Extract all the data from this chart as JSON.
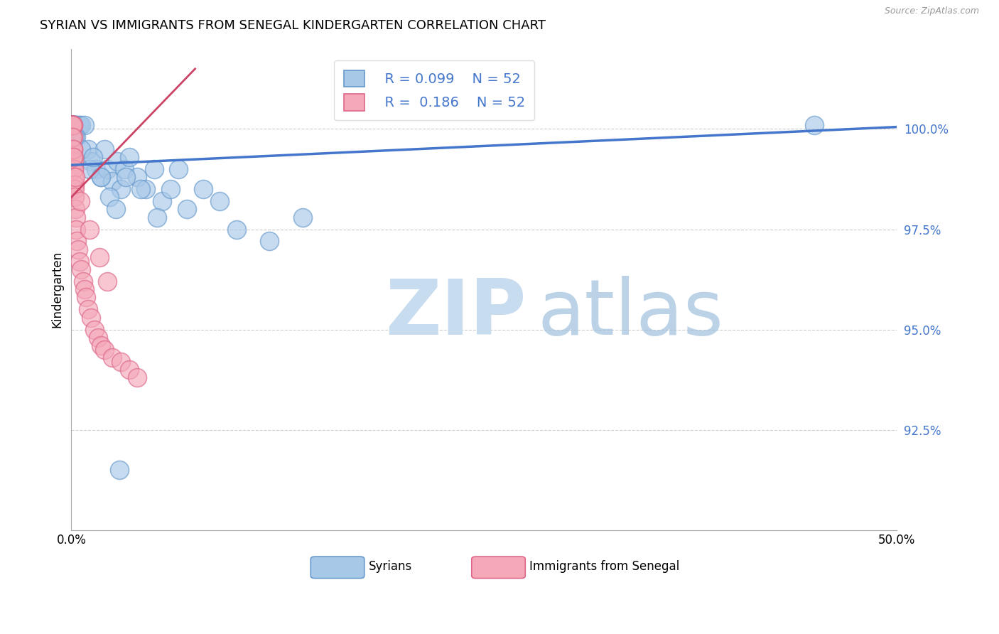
{
  "title": "SYRIAN VS IMMIGRANTS FROM SENEGAL KINDERGARTEN CORRELATION CHART",
  "source": "Source: ZipAtlas.com",
  "xlabel_syrians": "Syrians",
  "xlabel_senegal": "Immigrants from Senegal",
  "ylabel": "Kindergarten",
  "xlim": [
    0.0,
    50.0
  ],
  "ylim": [
    90.0,
    102.0
  ],
  "ytick_labels": [
    "92.5%",
    "95.0%",
    "97.5%",
    "100.0%"
  ],
  "ytick_values": [
    92.5,
    95.0,
    97.5,
    100.0
  ],
  "legend_blue_r": "R = 0.099",
  "legend_blue_n": "N = 52",
  "legend_pink_r": "R =  0.186",
  "legend_pink_n": "N = 52",
  "blue_color": "#A8C8E8",
  "pink_color": "#F4A8B8",
  "blue_edge_color": "#6699CC",
  "pink_edge_color": "#DD6688",
  "blue_line_color": "#4477CC",
  "pink_line_color": "#CC4466",
  "background_color": "#FFFFFF",
  "grid_color": "#CCCCCC",
  "blue_scatter_x": [
    0.05,
    0.05,
    0.05,
    0.1,
    0.1,
    0.1,
    0.15,
    0.15,
    0.2,
    0.2,
    0.3,
    0.3,
    0.4,
    0.5,
    0.6,
    0.8,
    1.0,
    1.2,
    1.5,
    1.8,
    2.0,
    2.2,
    2.5,
    2.8,
    3.0,
    3.2,
    3.5,
    4.0,
    4.5,
    5.0,
    5.5,
    6.0,
    6.5,
    7.0,
    8.0,
    9.0,
    10.0,
    12.0,
    14.0,
    0.3,
    0.6,
    1.1,
    1.8,
    2.3,
    2.7,
    3.3,
    4.2,
    5.2,
    45.0,
    0.2,
    1.3,
    2.9
  ],
  "blue_scatter_y": [
    100.1,
    100.1,
    100.1,
    100.1,
    100.1,
    100.1,
    100.1,
    100.1,
    100.1,
    100.1,
    100.1,
    100.1,
    100.1,
    100.1,
    100.1,
    100.1,
    99.5,
    99.2,
    99.0,
    98.8,
    99.5,
    99.0,
    98.7,
    99.2,
    98.5,
    99.0,
    99.3,
    98.8,
    98.5,
    99.0,
    98.2,
    98.5,
    99.0,
    98.0,
    98.5,
    98.2,
    97.5,
    97.2,
    97.8,
    99.8,
    99.5,
    99.0,
    98.8,
    98.3,
    98.0,
    98.8,
    98.5,
    97.8,
    100.1,
    99.8,
    99.3,
    91.5
  ],
  "pink_scatter_x": [
    0.02,
    0.03,
    0.04,
    0.05,
    0.05,
    0.06,
    0.07,
    0.08,
    0.08,
    0.09,
    0.1,
    0.1,
    0.12,
    0.12,
    0.13,
    0.14,
    0.15,
    0.15,
    0.16,
    0.17,
    0.18,
    0.2,
    0.22,
    0.25,
    0.28,
    0.3,
    0.35,
    0.4,
    0.5,
    0.6,
    0.7,
    0.8,
    0.9,
    1.0,
    1.2,
    1.4,
    1.6,
    1.8,
    2.0,
    2.5,
    3.0,
    3.5,
    4.0,
    0.06,
    0.09,
    0.11,
    0.13,
    0.25,
    0.55,
    1.1,
    1.7,
    2.2
  ],
  "pink_scatter_y": [
    100.1,
    100.1,
    100.1,
    100.1,
    100.1,
    100.1,
    100.1,
    100.1,
    100.1,
    100.1,
    100.1,
    100.1,
    99.8,
    99.5,
    99.5,
    99.3,
    99.2,
    99.0,
    99.0,
    98.8,
    98.6,
    98.5,
    98.3,
    98.0,
    97.8,
    97.5,
    97.2,
    97.0,
    96.7,
    96.5,
    96.2,
    96.0,
    95.8,
    95.5,
    95.3,
    95.0,
    94.8,
    94.6,
    94.5,
    94.3,
    94.2,
    94.0,
    93.8,
    100.1,
    99.8,
    99.5,
    99.3,
    98.8,
    98.2,
    97.5,
    96.8,
    96.2
  ],
  "blue_line_x0": 0.0,
  "blue_line_x1": 50.0,
  "blue_line_y0": 99.1,
  "blue_line_y1": 100.05,
  "pink_line_x0": 0.0,
  "pink_line_x1": 7.5,
  "pink_line_y0": 98.3,
  "pink_line_y1": 101.5
}
